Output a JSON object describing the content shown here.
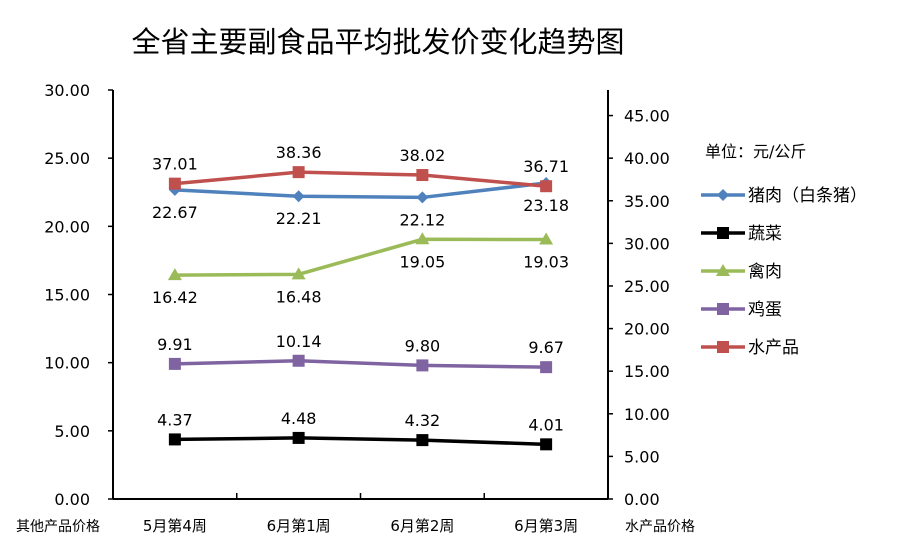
{
  "chart_data": {
    "type": "line",
    "title": "全省主要副食品平均批发价变化趋势图",
    "unit_label": "单位：元/公斤",
    "categories": [
      "5月第4周",
      "6月第1周",
      "6月第2周",
      "6月第3周"
    ],
    "left_axis": {
      "label": "其他产品价格",
      "ylim": [
        0,
        30
      ],
      "ticks": [
        "0.00",
        "5.00",
        "10.00",
        "15.00",
        "20.00",
        "25.00",
        "30.00"
      ]
    },
    "right_axis": {
      "label": "水产品价格",
      "ylim": [
        0,
        48
      ],
      "ticks": [
        "0.00",
        "5.00",
        "10.00",
        "15.00",
        "20.00",
        "25.00",
        "30.00",
        "35.00",
        "40.00",
        "45.00"
      ]
    },
    "legend_position": "right",
    "series": [
      {
        "name": "猪肉（白条猪）",
        "axis": "left",
        "color": "#4F81BD",
        "marker": "diamond",
        "values": [
          22.67,
          22.21,
          22.12,
          23.18
        ],
        "labels": [
          "22.67",
          "22.21",
          "22.12",
          "23.18"
        ],
        "label_pos": "below"
      },
      {
        "name": "蔬菜",
        "axis": "left",
        "color": "#000000",
        "marker": "square",
        "values": [
          4.37,
          4.48,
          4.32,
          4.01
        ],
        "labels": [
          "4.37",
          "4.48",
          "4.32",
          "4.01"
        ],
        "label_pos": "above"
      },
      {
        "name": "禽肉",
        "axis": "left",
        "color": "#9BBB59",
        "marker": "triangle",
        "values": [
          16.42,
          16.48,
          19.05,
          19.03
        ],
        "labels": [
          "16.42",
          "16.48",
          "19.05",
          "19.03"
        ],
        "label_pos": "below"
      },
      {
        "name": "鸡蛋",
        "axis": "left",
        "color": "#8064A2",
        "marker": "square",
        "values": [
          9.91,
          10.14,
          9.8,
          9.67
        ],
        "labels": [
          "9.91",
          "10.14",
          "9.80",
          "9.67"
        ],
        "label_pos": "above"
      },
      {
        "name": "水产品",
        "axis": "right",
        "color": "#C0504D",
        "marker": "square",
        "values": [
          37.01,
          38.36,
          38.02,
          36.71
        ],
        "labels": [
          "37.01",
          "38.36",
          "38.02",
          "36.71"
        ],
        "label_pos": "above"
      }
    ]
  }
}
